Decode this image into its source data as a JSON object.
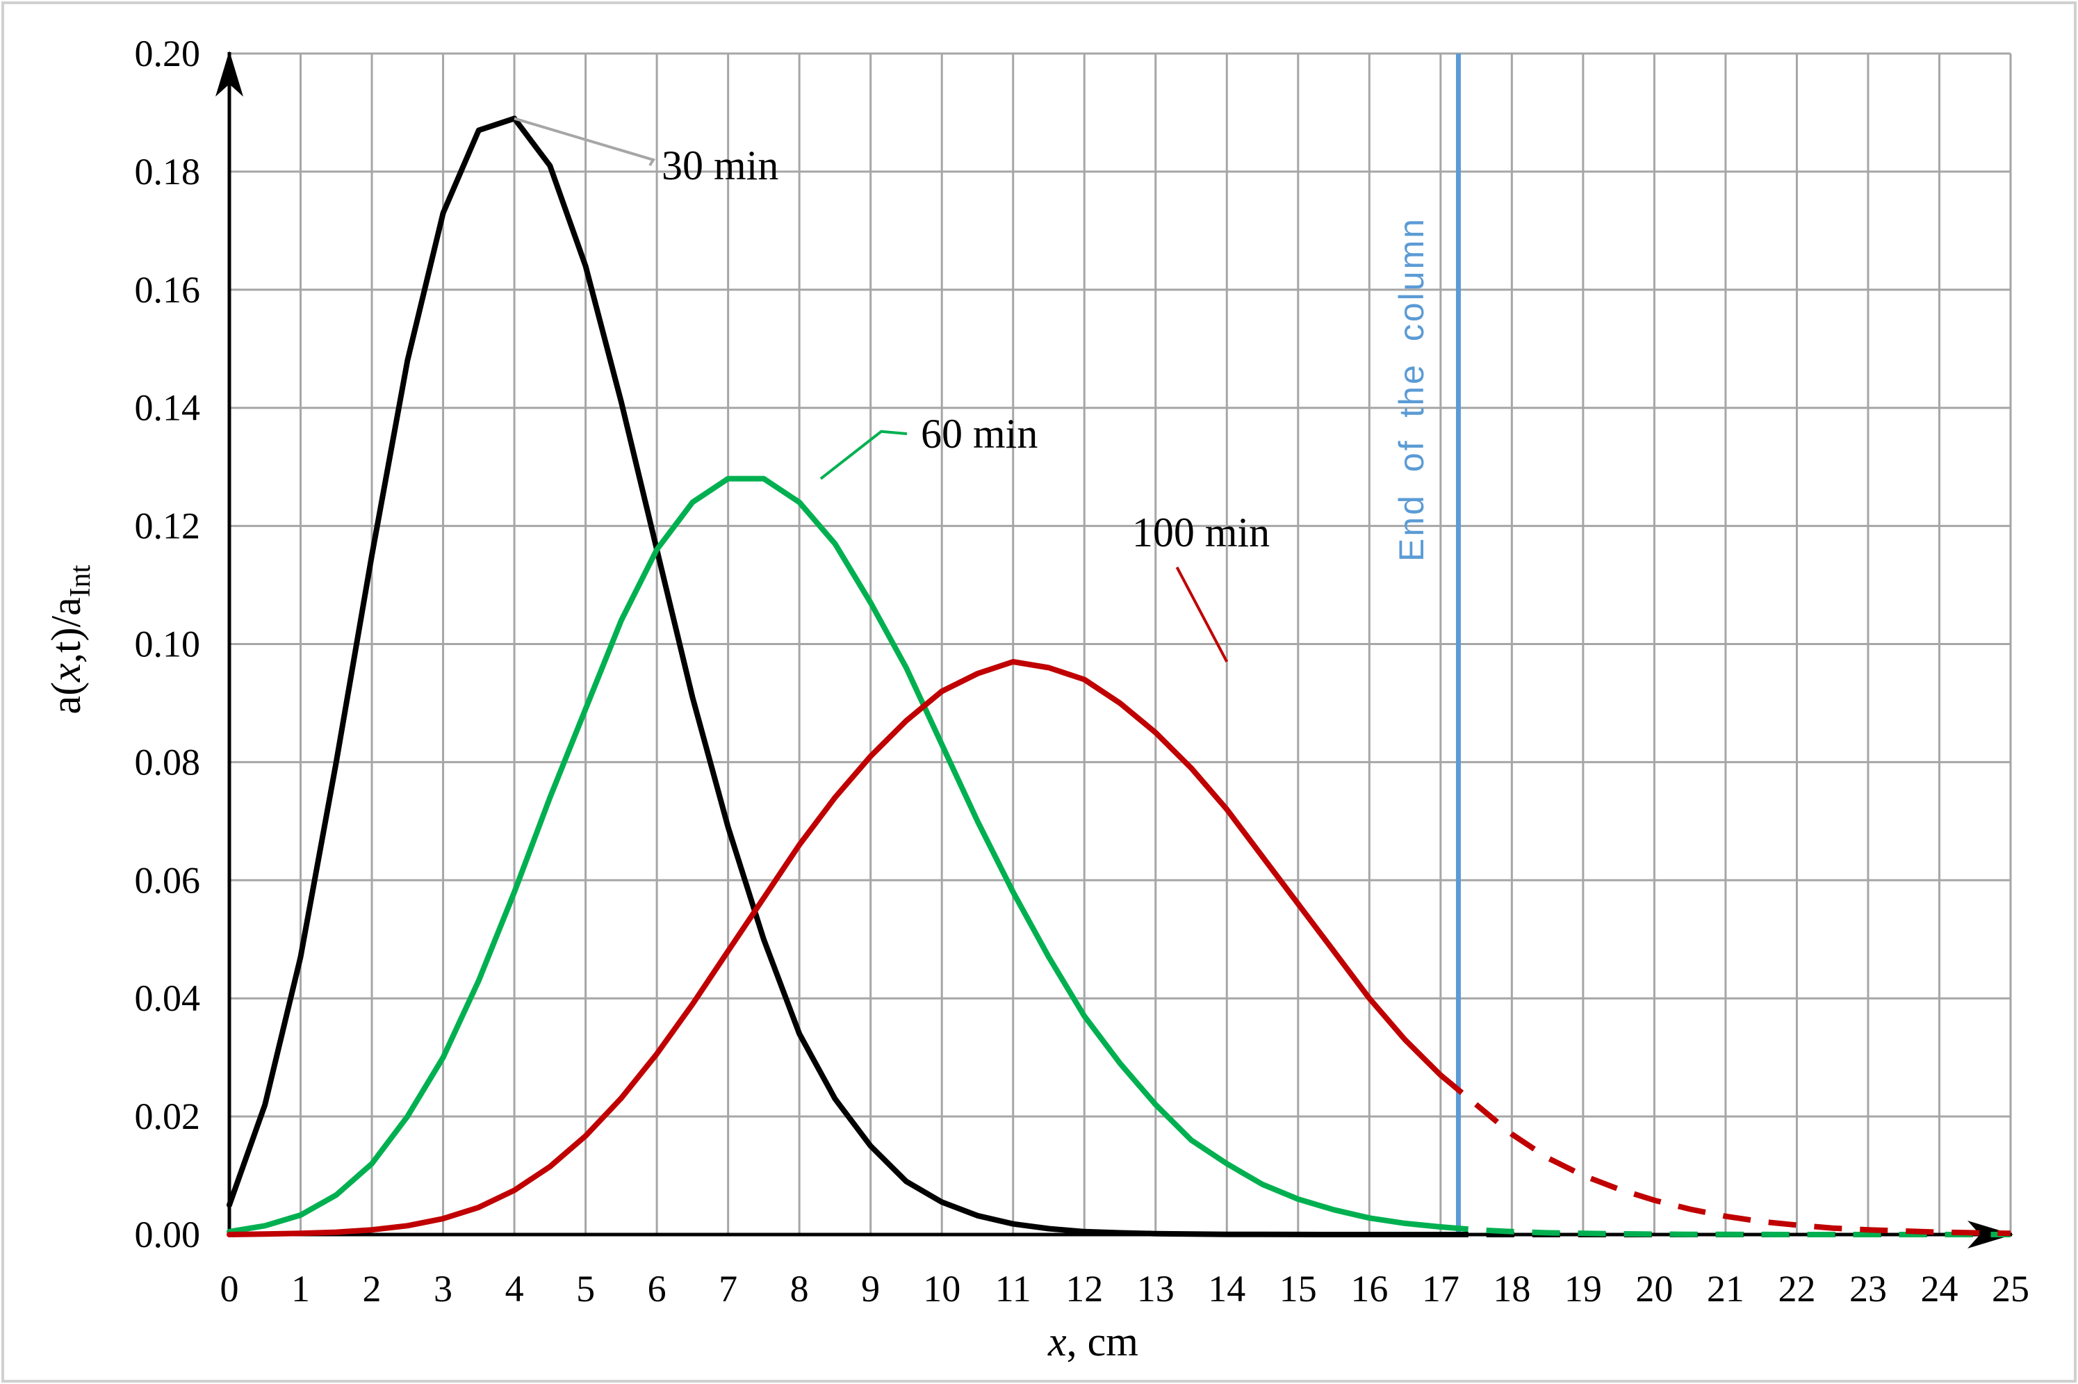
{
  "chart_data": {
    "type": "line",
    "title": "",
    "xlabel": "x, cm",
    "xlabel_italic": "x",
    "xlabel_rest": ", cm",
    "ylabel": "a(x,t)/aInt",
    "ylabel_parts": {
      "pre": "a(",
      "var": "x",
      "post": ",t)/a",
      "sub": "Int"
    },
    "xlim": [
      0,
      25
    ],
    "ylim": [
      0,
      0.2
    ],
    "xticks": [
      "0",
      "1",
      "2",
      "3",
      "4",
      "5",
      "6",
      "7",
      "8",
      "9",
      "10",
      "11",
      "12",
      "13",
      "14",
      "15",
      "16",
      "17",
      "18",
      "19",
      "20",
      "21",
      "22",
      "23",
      "24",
      "25"
    ],
    "yticks": [
      "0.00",
      "0.02",
      "0.04",
      "0.06",
      "0.08",
      "0.10",
      "0.12",
      "0.14",
      "0.16",
      "0.18",
      "0.20"
    ],
    "grid": true,
    "column_end": {
      "x": 17.25,
      "label": "End of the column",
      "color": "#5b9bd5"
    },
    "x": [
      0,
      0.5,
      1,
      1.5,
      2,
      2.5,
      3,
      3.5,
      4,
      4.5,
      5,
      5.5,
      6,
      6.5,
      7,
      7.5,
      8,
      8.5,
      9,
      9.5,
      10,
      10.5,
      11,
      11.5,
      12,
      12.5,
      13,
      13.5,
      14,
      14.5,
      15,
      15.5,
      16,
      16.5,
      17,
      17.5,
      18,
      18.5,
      19,
      19.5,
      20,
      20.5,
      21,
      21.5,
      22,
      22.5,
      23,
      23.5,
      24,
      24.5,
      25
    ],
    "series": [
      {
        "name": "30 min",
        "color": "#000000",
        "values": [
          0.005,
          0.022,
          0.047,
          0.08,
          0.115,
          0.148,
          0.173,
          0.187,
          0.189,
          0.181,
          0.164,
          0.141,
          0.116,
          0.091,
          0.069,
          0.05,
          0.034,
          0.023,
          0.015,
          0.009,
          0.0055,
          0.0032,
          0.0018,
          0.001,
          0.0005,
          0.0003,
          0.00015,
          8e-05,
          4e-05,
          2e-05,
          1e-05,
          0,
          0,
          0,
          0,
          0,
          0,
          0,
          0,
          0,
          0,
          0,
          0,
          0,
          0,
          0,
          0,
          0,
          0,
          0,
          0
        ]
      },
      {
        "name": "60 min",
        "color": "#00b050",
        "values": [
          0.0005,
          0.0015,
          0.0033,
          0.0067,
          0.012,
          0.02,
          0.03,
          0.043,
          0.058,
          0.074,
          0.089,
          0.104,
          0.116,
          0.124,
          0.128,
          0.128,
          0.124,
          0.117,
          0.107,
          0.096,
          0.083,
          0.07,
          0.058,
          0.047,
          0.037,
          0.029,
          0.022,
          0.016,
          0.012,
          0.0085,
          0.006,
          0.0042,
          0.0028,
          0.0019,
          0.0013,
          0.0008,
          0.0005,
          0.0003,
          0.0002,
          0.00012,
          7e-05,
          4e-05,
          2e-05,
          1e-05,
          0,
          0,
          0,
          0,
          0,
          0,
          0
        ]
      },
      {
        "name": "100 min",
        "color": "#c00000",
        "values": [
          0,
          0.0001,
          0.0002,
          0.0004,
          0.0008,
          0.0015,
          0.0027,
          0.0046,
          0.0075,
          0.0115,
          0.0167,
          0.0231,
          0.0306,
          0.039,
          0.048,
          0.057,
          0.066,
          0.074,
          0.081,
          0.087,
          0.092,
          0.095,
          0.097,
          0.096,
          0.094,
          0.09,
          0.085,
          0.079,
          0.072,
          0.064,
          0.056,
          0.048,
          0.04,
          0.033,
          0.027,
          0.022,
          0.017,
          0.013,
          0.01,
          0.0077,
          0.0058,
          0.0043,
          0.0031,
          0.0022,
          0.0016,
          0.0011,
          0.0008,
          0.0006,
          0.0004,
          0.0003,
          0.0002
        ]
      }
    ],
    "annotations": [
      {
        "label": "30 min"
      },
      {
        "label": "60 min"
      },
      {
        "label": "100 min"
      }
    ]
  }
}
